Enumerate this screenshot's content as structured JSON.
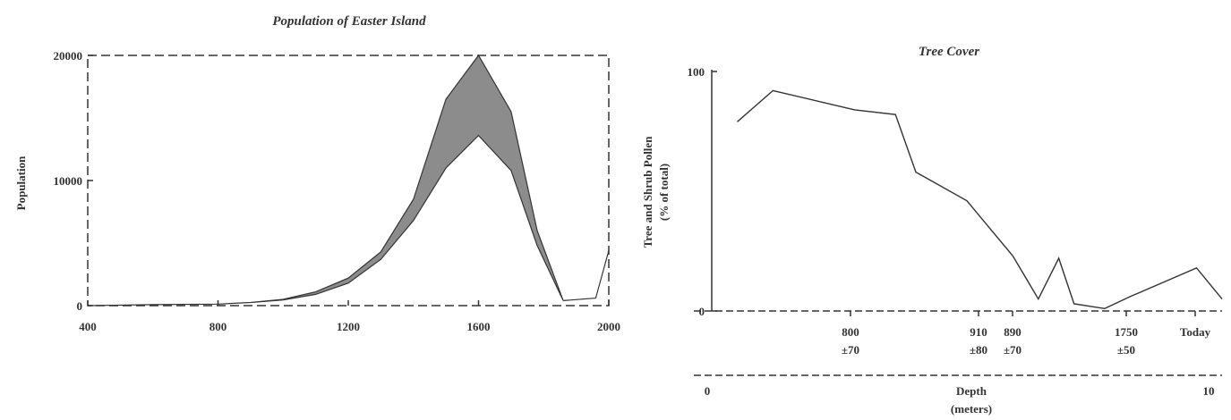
{
  "chart_data": [
    {
      "type": "area",
      "title": "Population of Easter Island",
      "ylabel": "Population",
      "xlabel": "",
      "x_ticks": [
        "400",
        "800",
        "1200",
        "1600",
        "2000"
      ],
      "y_ticks": [
        "0",
        "10000",
        "20000"
      ],
      "xlim": [
        400,
        2000
      ],
      "ylim": [
        0,
        20000
      ],
      "grid": false,
      "fill_color": "#8c8c8c",
      "series": [
        {
          "values": [
            [
              400,
              0
            ],
            [
              600,
              80
            ],
            [
              800,
              120
            ],
            [
              900,
              250
            ],
            [
              1000,
              500
            ],
            [
              1100,
              1100
            ],
            [
              1200,
              2200
            ],
            [
              1300,
              4300
            ],
            [
              1400,
              8500
            ],
            [
              1500,
              16500
            ],
            [
              1600,
              20000
            ],
            [
              1700,
              15500
            ],
            [
              1780,
              6000
            ],
            [
              1860,
              400
            ]
          ]
        },
        {
          "values": [
            [
              400,
              0
            ],
            [
              600,
              80
            ],
            [
              800,
              120
            ],
            [
              900,
              250
            ],
            [
              1000,
              450
            ],
            [
              1100,
              900
            ],
            [
              1200,
              1800
            ],
            [
              1300,
              3700
            ],
            [
              1400,
              6800
            ],
            [
              1500,
              11000
            ],
            [
              1600,
              13600
            ],
            [
              1700,
              10800
            ],
            [
              1780,
              4800
            ],
            [
              1860,
              400
            ]
          ]
        },
        {
          "values": [
            [
              1860,
              400
            ],
            [
              1960,
              600
            ],
            [
              2000,
              4400
            ]
          ]
        }
      ]
    },
    {
      "type": "line",
      "title": "Tree Cover",
      "ylabel": "Tree and Shrub Pollen (% of total)",
      "xlabel": "Depth (meters)",
      "y_ticks": [
        "0",
        "100"
      ],
      "ylim": [
        0,
        100
      ],
      "grid": false,
      "line_color": "#333333",
      "depth_ticks": [
        "0",
        "10"
      ],
      "date_labels": [
        {
          "line1": "800",
          "line2": "±70"
        },
        {
          "line1": "910",
          "line2": "±80"
        },
        {
          "line1": "890",
          "line2": "±70"
        },
        {
          "line1": "1750",
          "line2": "±50"
        },
        {
          "line1": "Today",
          "line2": ""
        }
      ],
      "x": [
        0.5,
        1.2,
        2.8,
        3.6,
        4.0,
        5.0,
        5.9,
        6.4,
        6.8,
        7.1,
        7.7,
        8.2,
        9.5,
        10.0
      ],
      "values": [
        79,
        92,
        84,
        82,
        58,
        46,
        23,
        5,
        22,
        3,
        1,
        6,
        18,
        5
      ]
    }
  ]
}
